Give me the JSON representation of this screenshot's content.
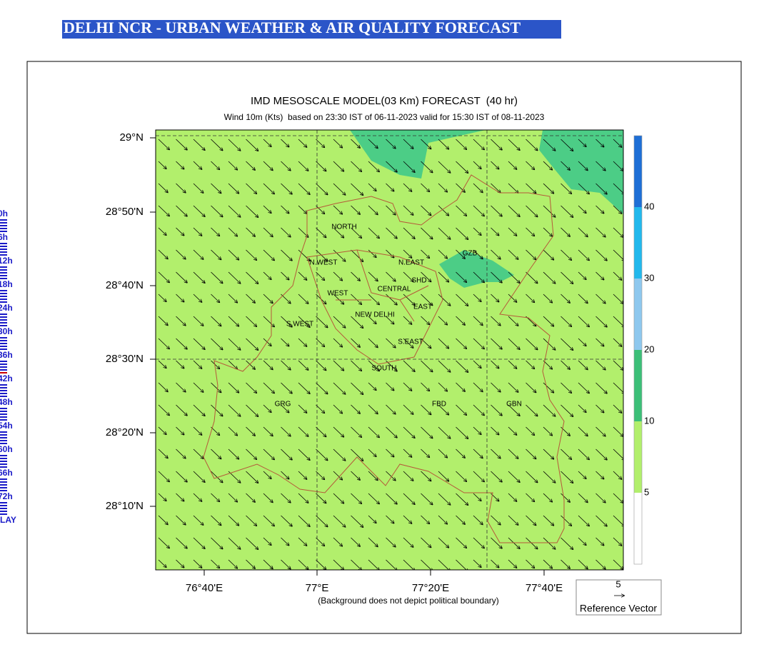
{
  "header": {
    "title": "DELHI NCR - URBAN WEATHER & AIR QUALITY FORECAST"
  },
  "nav": {
    "items": [
      "0h",
      "6h",
      "12h",
      "18h",
      "24h",
      "30h",
      "36h",
      "42h",
      "48h",
      "54h",
      "60h",
      "66h",
      "72h",
      "LAY"
    ]
  },
  "map": {
    "title": "IMD MESOSCALE MODEL(03 Km) FORECAST  (40 hr)",
    "subtitle": "Wind 10m (Kts)  based on 23:30 IST of 06-11-2023 valid for 15:30 IST of 08-11-2023",
    "lat_labels": [
      "29°N",
      "28°50'N",
      "28°40'N",
      "28°30'N",
      "28°20'N",
      "28°10'N"
    ],
    "lon_labels": [
      "76°40'E",
      "77°E",
      "77°20'E",
      "77°40'E"
    ],
    "colorbar_labels": [
      "5",
      "10",
      "20",
      "30",
      "40"
    ],
    "regions": [
      "NORTH",
      "N.WEST",
      "N.EAST",
      "GZB",
      "SHD",
      "CENTRAL",
      "WEST",
      "EAST",
      "NEW DELHI",
      "S.WEST",
      "S.EAST",
      "SOUTH",
      "GRG",
      "FBD",
      "GBN"
    ],
    "footnote": "(Background does not depict political boundary)",
    "reference_vector": {
      "value": "5",
      "label": "Reference Vector"
    }
  }
}
